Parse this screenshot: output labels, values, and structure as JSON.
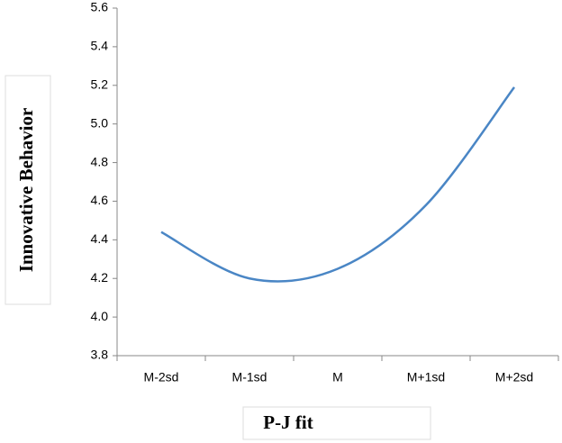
{
  "chart_data": {
    "type": "line",
    "x_label": "P-J fit",
    "y_label": "Innovative Behavior",
    "categories": [
      "M-2sd",
      "M-1sd",
      "M",
      "M+1sd",
      "M+2sd"
    ],
    "series": [
      {
        "name": "Innovative Behavior",
        "color": "#4a86c5",
        "values": [
          4.44,
          4.2,
          4.25,
          4.58,
          5.19
        ]
      }
    ],
    "ylim": [
      3.8,
      5.6
    ],
    "yticks": [
      3.8,
      {
        "value": 4.0,
        "label": "4.0"
      },
      4.2,
      4.4,
      4.6,
      4.8,
      {
        "value": 5.0,
        "label": "5.0"
      },
      5.2,
      5.4,
      5.6
    ],
    "smooth": true
  }
}
